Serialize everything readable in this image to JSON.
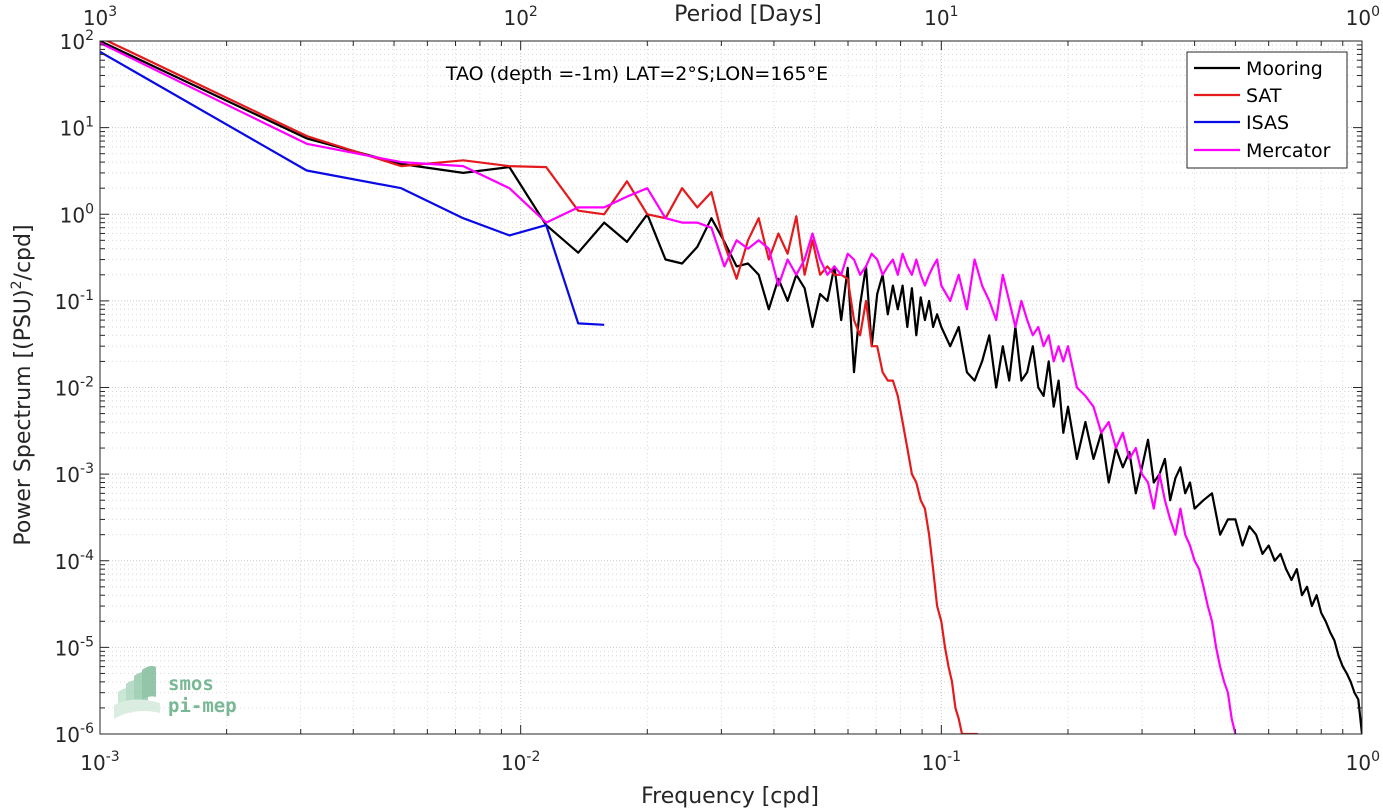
{
  "chart_data": {
    "type": "line",
    "title": "",
    "annotation": "TAO (depth =-1m) LAT=2°S;LON=165°E",
    "xlabel": "Frequency [cpd]",
    "ylabel_main": "Power Spectrum [(PSU)",
    "ylabel_sup": "2",
    "ylabel_tail": "/cpd]",
    "top_xlabel": "Period [Days]",
    "xscale": "log",
    "yscale": "log",
    "xlim": [
      0.001,
      1
    ],
    "ylim": [
      1e-06,
      100
    ],
    "grid": true,
    "legend_position": "top-right",
    "x_ticks": [
      {
        "base": "10",
        "exp": "-3",
        "value": 0.001
      },
      {
        "base": "10",
        "exp": "-2",
        "value": 0.01
      },
      {
        "base": "10",
        "exp": "-1",
        "value": 0.1
      },
      {
        "base": "10",
        "exp": "0",
        "value": 1
      }
    ],
    "top_ticks": [
      {
        "base": "10",
        "exp": "3",
        "value": 0.001
      },
      {
        "base": "10",
        "exp": "2",
        "value": 0.01
      },
      {
        "base": "10",
        "exp": "1",
        "value": 0.1
      },
      {
        "base": "10",
        "exp": "0",
        "value": 1
      }
    ],
    "y_ticks": [
      {
        "base": "10",
        "exp": "2",
        "value": 100
      },
      {
        "base": "10",
        "exp": "1",
        "value": 10
      },
      {
        "base": "10",
        "exp": "0",
        "value": 1
      },
      {
        "base": "10",
        "exp": "-1",
        "value": 0.1
      },
      {
        "base": "10",
        "exp": "-2",
        "value": 0.01
      },
      {
        "base": "10",
        "exp": "-3",
        "value": 0.001
      },
      {
        "base": "10",
        "exp": "-4",
        "value": 0.0001
      },
      {
        "base": "10",
        "exp": "-5",
        "value": 1e-05
      },
      {
        "base": "10",
        "exp": "-6",
        "value": 1e-06
      }
    ],
    "series": [
      {
        "name": "Mooring",
        "color": "#000000",
        "x": [
          0.001,
          0.0031,
          0.0052,
          0.0073,
          0.0094,
          0.0115,
          0.0137,
          0.0158,
          0.0179,
          0.02,
          0.0221,
          0.0242,
          0.0263,
          0.0284,
          0.0305,
          0.0326,
          0.0347,
          0.0368,
          0.0389,
          0.041,
          0.0431,
          0.0452,
          0.0473,
          0.0494,
          0.0515,
          0.0536,
          0.0557,
          0.0578,
          0.0599,
          0.062,
          0.0641,
          0.0662,
          0.0683,
          0.0704,
          0.0725,
          0.0746,
          0.0767,
          0.0788,
          0.0809,
          0.083,
          0.0851,
          0.0872,
          0.0893,
          0.0914,
          0.0935,
          0.0956,
          0.0977,
          0.1,
          0.105,
          0.11,
          0.115,
          0.12,
          0.125,
          0.13,
          0.135,
          0.14,
          0.145,
          0.15,
          0.155,
          0.16,
          0.165,
          0.17,
          0.175,
          0.18,
          0.185,
          0.19,
          0.195,
          0.2,
          0.21,
          0.22,
          0.23,
          0.24,
          0.25,
          0.26,
          0.27,
          0.28,
          0.29,
          0.3,
          0.31,
          0.32,
          0.33,
          0.34,
          0.35,
          0.36,
          0.37,
          0.38,
          0.39,
          0.4,
          0.42,
          0.44,
          0.46,
          0.48,
          0.5,
          0.52,
          0.54,
          0.56,
          0.58,
          0.6,
          0.62,
          0.64,
          0.66,
          0.68,
          0.7,
          0.72,
          0.74,
          0.76,
          0.78,
          0.8,
          0.82,
          0.84,
          0.86,
          0.88,
          0.9,
          0.92,
          0.94,
          0.96,
          0.98,
          1.0
        ],
        "y": [
          100,
          7.5,
          3.8,
          3.0,
          3.5,
          0.75,
          0.36,
          0.8,
          0.48,
          1.0,
          0.3,
          0.27,
          0.42,
          0.9,
          0.48,
          0.25,
          0.27,
          0.2,
          0.08,
          0.18,
          0.1,
          0.2,
          0.14,
          0.05,
          0.12,
          0.1,
          0.25,
          0.06,
          0.24,
          0.015,
          0.09,
          0.25,
          0.03,
          0.12,
          0.2,
          0.07,
          0.15,
          0.08,
          0.15,
          0.05,
          0.14,
          0.04,
          0.11,
          0.06,
          0.1,
          0.05,
          0.07,
          0.05,
          0.03,
          0.05,
          0.015,
          0.012,
          0.02,
          0.04,
          0.01,
          0.03,
          0.012,
          0.05,
          0.012,
          0.015,
          0.03,
          0.01,
          0.008,
          0.02,
          0.006,
          0.012,
          0.003,
          0.006,
          0.0015,
          0.004,
          0.0015,
          0.003,
          0.0008,
          0.002,
          0.0012,
          0.0018,
          0.0006,
          0.0012,
          0.0025,
          0.0008,
          0.001,
          0.0015,
          0.0005,
          0.0009,
          0.0012,
          0.0006,
          0.0008,
          0.0004,
          0.0005,
          0.0006,
          0.0002,
          0.0003,
          0.0003,
          0.00015,
          0.00025,
          0.0002,
          0.00012,
          0.00015,
          0.0001,
          0.00012,
          8e-05,
          6e-05,
          8e-05,
          4e-05,
          5e-05,
          3e-05,
          4e-05,
          2.5e-05,
          2e-05,
          1.5e-05,
          1.2e-05,
          8e-06,
          6e-06,
          5e-06,
          4e-06,
          3e-06,
          2.5e-06,
          1e-06
        ]
      },
      {
        "name": "SAT",
        "color": "#e41a1c",
        "x": [
          0.001,
          0.0031,
          0.0052,
          0.0073,
          0.0094,
          0.0115,
          0.0137,
          0.0158,
          0.0179,
          0.02,
          0.0221,
          0.0242,
          0.0263,
          0.0284,
          0.0305,
          0.0326,
          0.0347,
          0.0368,
          0.0389,
          0.041,
          0.0431,
          0.0452,
          0.0473,
          0.0494,
          0.0515,
          0.0536,
          0.0557,
          0.0578,
          0.0599,
          0.062,
          0.0641,
          0.0662,
          0.0683,
          0.0704,
          0.0725,
          0.0746,
          0.0767,
          0.0788,
          0.0809,
          0.083,
          0.0851,
          0.0872,
          0.0893,
          0.0914,
          0.0935,
          0.0956,
          0.0977,
          0.1,
          0.102,
          0.104,
          0.106,
          0.108,
          0.11,
          0.112,
          0.114,
          0.116,
          0.118,
          0.12,
          0.121,
          0.122
        ],
        "y": [
          110,
          8.0,
          3.6,
          4.2,
          3.6,
          3.5,
          1.1,
          1.0,
          2.4,
          1.0,
          0.9,
          2.0,
          1.2,
          1.8,
          0.45,
          0.18,
          0.5,
          0.9,
          0.3,
          0.6,
          0.35,
          0.95,
          0.2,
          0.5,
          0.2,
          0.25,
          0.2,
          0.2,
          0.18,
          0.06,
          0.04,
          0.1,
          0.03,
          0.03,
          0.015,
          0.012,
          0.012,
          0.008,
          0.004,
          0.002,
          0.001,
          0.0008,
          0.0005,
          0.0004,
          0.0002,
          8e-05,
          3e-05,
          2e-05,
          1e-05,
          6e-06,
          4e-06,
          2e-06,
          1.5e-06,
          1e-06,
          1e-06,
          1e-06,
          1e-06,
          1e-06,
          1e-06,
          1e-06
        ]
      },
      {
        "name": "ISAS",
        "color": "#0a0ae6",
        "x": [
          0.001,
          0.0031,
          0.0052,
          0.0073,
          0.0094,
          0.0115,
          0.0137,
          0.0158
        ],
        "y": [
          75,
          3.2,
          2.0,
          0.9,
          0.57,
          0.75,
          0.055,
          0.053
        ]
      },
      {
        "name": "Mercator",
        "color": "#ff00ff",
        "x": [
          0.001,
          0.0031,
          0.0052,
          0.0073,
          0.0094,
          0.0115,
          0.0137,
          0.0158,
          0.0179,
          0.02,
          0.0221,
          0.0242,
          0.0263,
          0.0284,
          0.0305,
          0.0326,
          0.0347,
          0.0368,
          0.0389,
          0.041,
          0.0431,
          0.0452,
          0.0473,
          0.0494,
          0.0515,
          0.0536,
          0.0557,
          0.0578,
          0.0599,
          0.062,
          0.0641,
          0.0662,
          0.0683,
          0.0704,
          0.0725,
          0.0746,
          0.0767,
          0.0788,
          0.0809,
          0.083,
          0.0851,
          0.0872,
          0.0893,
          0.0914,
          0.0935,
          0.0956,
          0.0977,
          0.1,
          0.105,
          0.11,
          0.115,
          0.12,
          0.125,
          0.13,
          0.135,
          0.14,
          0.145,
          0.15,
          0.155,
          0.16,
          0.165,
          0.17,
          0.175,
          0.18,
          0.185,
          0.19,
          0.195,
          0.2,
          0.21,
          0.22,
          0.23,
          0.24,
          0.25,
          0.26,
          0.27,
          0.28,
          0.29,
          0.3,
          0.31,
          0.32,
          0.33,
          0.34,
          0.35,
          0.36,
          0.37,
          0.38,
          0.39,
          0.4,
          0.41,
          0.42,
          0.43,
          0.44,
          0.45,
          0.46,
          0.47,
          0.48,
          0.49,
          0.5
        ],
        "y": [
          95,
          6.5,
          4.0,
          3.6,
          2.0,
          0.8,
          1.2,
          1.2,
          1.6,
          2.0,
          0.9,
          0.8,
          0.8,
          0.7,
          0.25,
          0.5,
          0.4,
          0.5,
          0.4,
          0.15,
          0.3,
          0.2,
          0.3,
          0.6,
          0.3,
          0.2,
          0.25,
          0.2,
          0.35,
          0.3,
          0.2,
          0.25,
          0.35,
          0.3,
          0.2,
          0.25,
          0.3,
          0.2,
          0.35,
          0.25,
          0.2,
          0.3,
          0.2,
          0.15,
          0.2,
          0.25,
          0.3,
          0.15,
          0.1,
          0.2,
          0.08,
          0.3,
          0.15,
          0.1,
          0.06,
          0.2,
          0.1,
          0.05,
          0.1,
          0.06,
          0.04,
          0.05,
          0.03,
          0.04,
          0.02,
          0.03,
          0.02,
          0.03,
          0.01,
          0.008,
          0.006,
          0.003,
          0.004,
          0.002,
          0.003,
          0.0015,
          0.002,
          0.001,
          0.0008,
          0.0004,
          0.001,
          0.0005,
          0.0003,
          0.0002,
          0.0004,
          0.0002,
          0.00015,
          0.0001,
          8e-05,
          5e-05,
          3e-05,
          2e-05,
          1e-05,
          6e-06,
          4e-06,
          3e-06,
          1.5e-06,
          1e-06
        ]
      }
    ]
  },
  "logo": {
    "line1": "smos",
    "line2": "pi-mep"
  }
}
